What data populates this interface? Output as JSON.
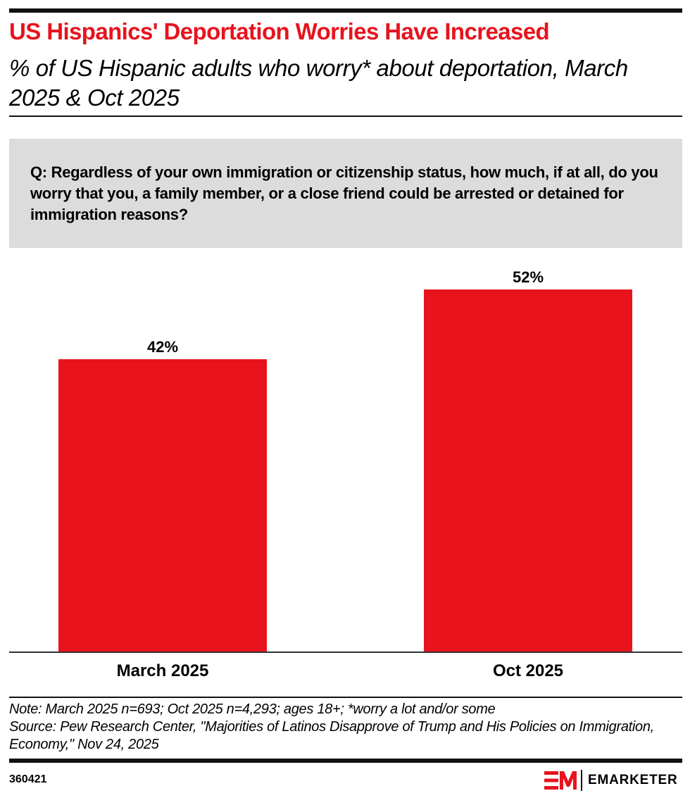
{
  "header": {
    "title": "US Hispanics' Deportation Worries Have Increased",
    "subtitle": "% of US Hispanic adults who worry* about deportation, March 2025 & Oct 2025"
  },
  "question": "Q: Regardless of your own immigration or citizenship status, how much, if at all, do you worry that you, a family member, or a close friend could be arrested or detained for immigration reasons?",
  "chart_data": {
    "type": "bar",
    "title": "US Hispanics' Deportation Worries Have Increased",
    "subtitle": "% of US Hispanic adults who worry* about deportation, March 2025 & Oct 2025",
    "categories": [
      "March 2025",
      "Oct 2025"
    ],
    "values": [
      42,
      52
    ],
    "value_labels": [
      "42%",
      "52%"
    ],
    "xlabel": "",
    "ylabel": "",
    "ylim": [
      0,
      52
    ],
    "grid": false,
    "bar_color": "#e8131d"
  },
  "footer": {
    "note": "Note: March 2025 n=693; Oct 2025 n=4,293; ages 18+; *worry a lot and/or some",
    "source": "Source: Pew Research Center, \"Majorities of Latinos Disapprove of Trump and His Policies on Immigration, Economy,\" Nov 24, 2025",
    "chart_id": "360421",
    "brand": "EMARKETER"
  },
  "colors": {
    "accent": "#e8131d",
    "question_bg": "#dcdcdc",
    "text": "#000000"
  }
}
